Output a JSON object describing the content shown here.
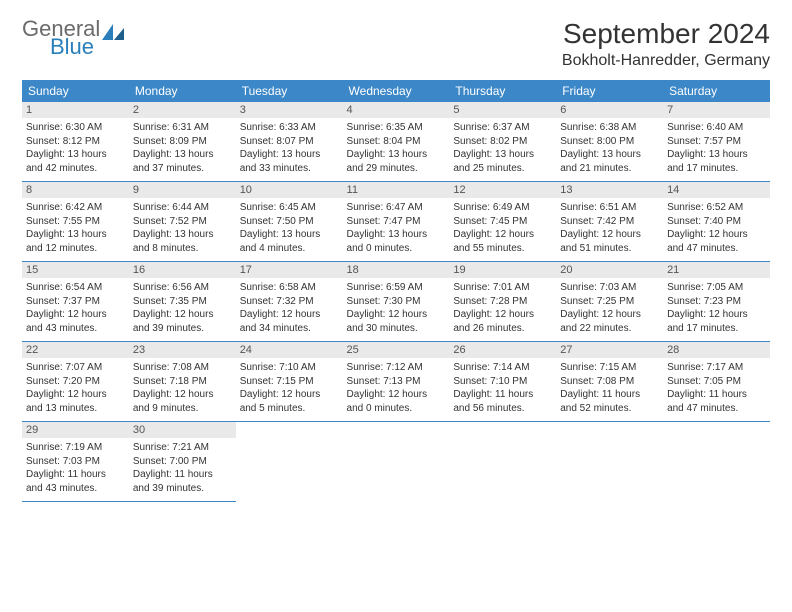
{
  "brand": {
    "general": "General",
    "blue": "Blue"
  },
  "title": "September 2024",
  "location": "Bokholt-Hanredder, Germany",
  "colors": {
    "header_bg": "#3b87c8",
    "header_text": "#ffffff",
    "date_bg": "#e9e9e9",
    "row_border": "#3b87c8",
    "logo_gray": "#6b6b6b",
    "logo_blue": "#2a7fba"
  },
  "day_names": [
    "Sunday",
    "Monday",
    "Tuesday",
    "Wednesday",
    "Thursday",
    "Friday",
    "Saturday"
  ],
  "days": [
    {
      "n": "1",
      "sr": "6:30 AM",
      "ss": "8:12 PM",
      "dl": "13 hours and 42 minutes."
    },
    {
      "n": "2",
      "sr": "6:31 AM",
      "ss": "8:09 PM",
      "dl": "13 hours and 37 minutes."
    },
    {
      "n": "3",
      "sr": "6:33 AM",
      "ss": "8:07 PM",
      "dl": "13 hours and 33 minutes."
    },
    {
      "n": "4",
      "sr": "6:35 AM",
      "ss": "8:04 PM",
      "dl": "13 hours and 29 minutes."
    },
    {
      "n": "5",
      "sr": "6:37 AM",
      "ss": "8:02 PM",
      "dl": "13 hours and 25 minutes."
    },
    {
      "n": "6",
      "sr": "6:38 AM",
      "ss": "8:00 PM",
      "dl": "13 hours and 21 minutes."
    },
    {
      "n": "7",
      "sr": "6:40 AM",
      "ss": "7:57 PM",
      "dl": "13 hours and 17 minutes."
    },
    {
      "n": "8",
      "sr": "6:42 AM",
      "ss": "7:55 PM",
      "dl": "13 hours and 12 minutes."
    },
    {
      "n": "9",
      "sr": "6:44 AM",
      "ss": "7:52 PM",
      "dl": "13 hours and 8 minutes."
    },
    {
      "n": "10",
      "sr": "6:45 AM",
      "ss": "7:50 PM",
      "dl": "13 hours and 4 minutes."
    },
    {
      "n": "11",
      "sr": "6:47 AM",
      "ss": "7:47 PM",
      "dl": "13 hours and 0 minutes."
    },
    {
      "n": "12",
      "sr": "6:49 AM",
      "ss": "7:45 PM",
      "dl": "12 hours and 55 minutes."
    },
    {
      "n": "13",
      "sr": "6:51 AM",
      "ss": "7:42 PM",
      "dl": "12 hours and 51 minutes."
    },
    {
      "n": "14",
      "sr": "6:52 AM",
      "ss": "7:40 PM",
      "dl": "12 hours and 47 minutes."
    },
    {
      "n": "15",
      "sr": "6:54 AM",
      "ss": "7:37 PM",
      "dl": "12 hours and 43 minutes."
    },
    {
      "n": "16",
      "sr": "6:56 AM",
      "ss": "7:35 PM",
      "dl": "12 hours and 39 minutes."
    },
    {
      "n": "17",
      "sr": "6:58 AM",
      "ss": "7:32 PM",
      "dl": "12 hours and 34 minutes."
    },
    {
      "n": "18",
      "sr": "6:59 AM",
      "ss": "7:30 PM",
      "dl": "12 hours and 30 minutes."
    },
    {
      "n": "19",
      "sr": "7:01 AM",
      "ss": "7:28 PM",
      "dl": "12 hours and 26 minutes."
    },
    {
      "n": "20",
      "sr": "7:03 AM",
      "ss": "7:25 PM",
      "dl": "12 hours and 22 minutes."
    },
    {
      "n": "21",
      "sr": "7:05 AM",
      "ss": "7:23 PM",
      "dl": "12 hours and 17 minutes."
    },
    {
      "n": "22",
      "sr": "7:07 AM",
      "ss": "7:20 PM",
      "dl": "12 hours and 13 minutes."
    },
    {
      "n": "23",
      "sr": "7:08 AM",
      "ss": "7:18 PM",
      "dl": "12 hours and 9 minutes."
    },
    {
      "n": "24",
      "sr": "7:10 AM",
      "ss": "7:15 PM",
      "dl": "12 hours and 5 minutes."
    },
    {
      "n": "25",
      "sr": "7:12 AM",
      "ss": "7:13 PM",
      "dl": "12 hours and 0 minutes."
    },
    {
      "n": "26",
      "sr": "7:14 AM",
      "ss": "7:10 PM",
      "dl": "11 hours and 56 minutes."
    },
    {
      "n": "27",
      "sr": "7:15 AM",
      "ss": "7:08 PM",
      "dl": "11 hours and 52 minutes."
    },
    {
      "n": "28",
      "sr": "7:17 AM",
      "ss": "7:05 PM",
      "dl": "11 hours and 47 minutes."
    },
    {
      "n": "29",
      "sr": "7:19 AM",
      "ss": "7:03 PM",
      "dl": "11 hours and 43 minutes."
    },
    {
      "n": "30",
      "sr": "7:21 AM",
      "ss": "7:00 PM",
      "dl": "11 hours and 39 minutes."
    }
  ],
  "labels": {
    "sunrise": "Sunrise: ",
    "sunset": "Sunset: ",
    "daylight": "Daylight: "
  }
}
